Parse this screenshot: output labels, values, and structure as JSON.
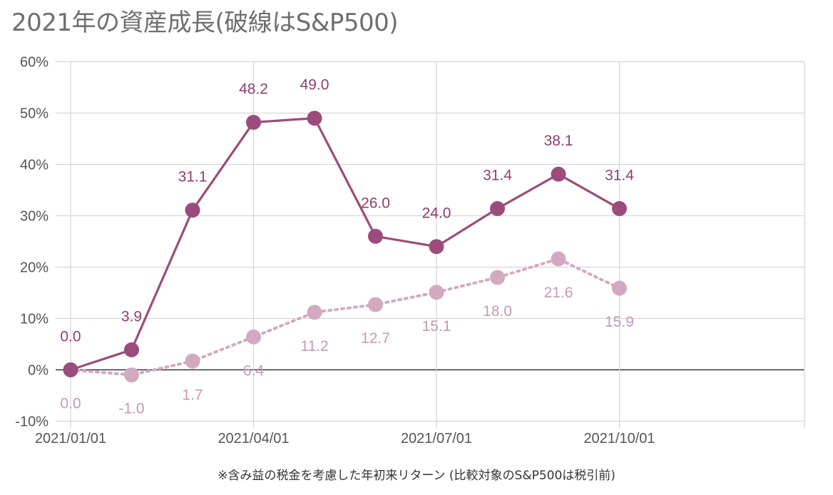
{
  "title": "2021年の資産成長(破線はS&P500)",
  "footnote": "※含み益の税金を考慮した年初来リターン (比較対象のS&P500は税引前)",
  "colors": {
    "portfolio": "#9b4c7a",
    "sp500": "#d3a9c0",
    "grid": "#d6d6d6",
    "zero": "#333333"
  },
  "chart_data": {
    "type": "line",
    "title": "2021年の資産成長(破線はS&P500)",
    "x": [
      "2021/01/01",
      "2021/02/01",
      "2021/03/01",
      "2021/04/01",
      "2021/05/01",
      "2021/06/01",
      "2021/07/01",
      "2021/08/01",
      "2021/09/01",
      "2021/10/01"
    ],
    "x_ticks": [
      "2021/01/01",
      "2021/04/01",
      "2021/07/01",
      "2021/10/01"
    ],
    "y_ticks": [
      "60%",
      "50%",
      "40%",
      "30%",
      "20%",
      "10%",
      "0%",
      "-10%"
    ],
    "ylim": [
      -10,
      60
    ],
    "grid": true,
    "series": [
      {
        "values": [
          0.0,
          3.9,
          31.1,
          48.2,
          49.0,
          26.0,
          24.0,
          31.4,
          38.1,
          31.4
        ],
        "labels": [
          "0.0",
          "3.9",
          "31.1",
          "48.2",
          "49.0",
          "26.0",
          "24.0",
          "31.4",
          "38.1",
          "31.4"
        ],
        "style": "solid"
      },
      {
        "values": [
          0.0,
          -1.0,
          1.7,
          6.4,
          11.2,
          12.7,
          15.1,
          18.0,
          21.6,
          15.9
        ],
        "labels": [
          "0.0",
          "-1.0",
          "1.7",
          "6.4",
          "11.2",
          "12.7",
          "15.1",
          "18.0",
          "21.6",
          "15.9"
        ],
        "style": "dotted"
      }
    ]
  }
}
